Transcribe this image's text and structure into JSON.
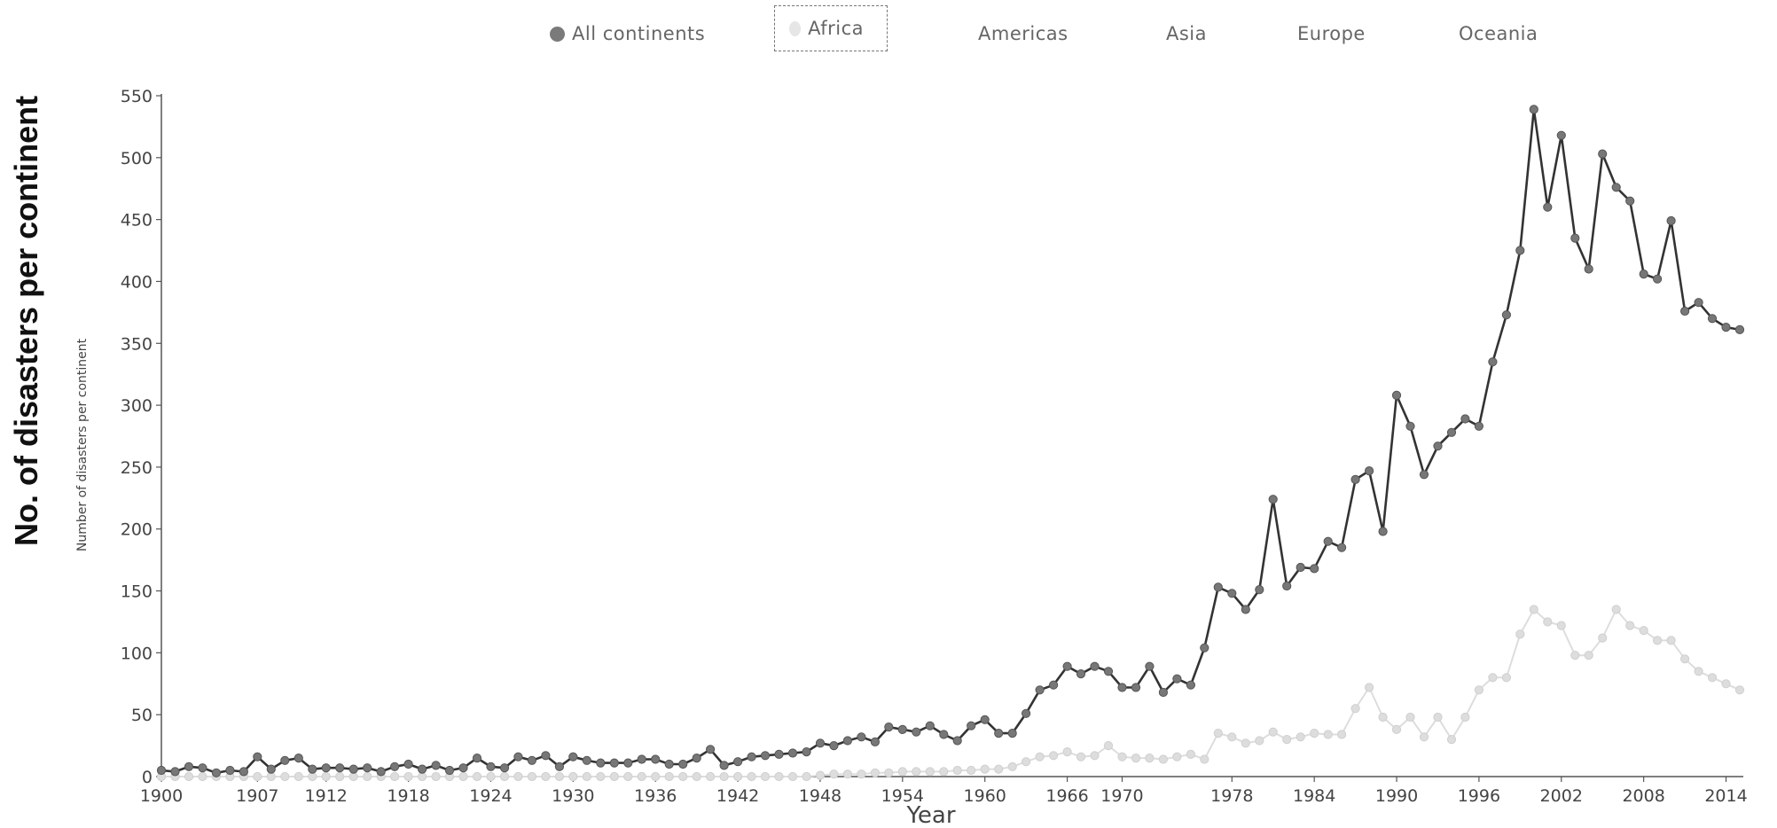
{
  "legend": {
    "items": [
      {
        "label": "All continents",
        "color": "#777777",
        "selected": false
      },
      {
        "label": "Africa",
        "color": "#dddddd",
        "selected": true
      },
      {
        "label": "Americas",
        "color": null,
        "selected": false
      },
      {
        "label": "Asia",
        "color": null,
        "selected": false
      },
      {
        "label": "Europe",
        "color": null,
        "selected": false
      },
      {
        "label": "Oceania",
        "color": null,
        "selected": false
      }
    ]
  },
  "outer_ylabel": "No. of disasters per continent",
  "chart_data": {
    "type": "line",
    "title": "",
    "xlabel": "Year",
    "ylabel": "Number of disasters per continent",
    "xlim": [
      1900,
      2015
    ],
    "ylim": [
      0,
      550
    ],
    "yticks": [
      0,
      50,
      100,
      150,
      200,
      250,
      300,
      350,
      400,
      450,
      500,
      550
    ],
    "xticks": [
      1900,
      1907,
      1912,
      1918,
      1924,
      1930,
      1936,
      1942,
      1948,
      1954,
      1960,
      1966,
      1970,
      1978,
      1984,
      1990,
      1996,
      2002,
      2008,
      2014
    ],
    "grid": false,
    "legend_position": "top",
    "x": [
      1900,
      1901,
      1902,
      1903,
      1904,
      1905,
      1906,
      1907,
      1908,
      1909,
      1910,
      1911,
      1912,
      1913,
      1914,
      1915,
      1916,
      1917,
      1918,
      1919,
      1920,
      1921,
      1922,
      1923,
      1924,
      1925,
      1926,
      1927,
      1928,
      1929,
      1930,
      1931,
      1932,
      1933,
      1934,
      1935,
      1936,
      1937,
      1938,
      1939,
      1940,
      1941,
      1942,
      1943,
      1944,
      1945,
      1946,
      1947,
      1948,
      1949,
      1950,
      1951,
      1952,
      1953,
      1954,
      1955,
      1956,
      1957,
      1958,
      1959,
      1960,
      1961,
      1962,
      1963,
      1964,
      1965,
      1966,
      1967,
      1968,
      1969,
      1970,
      1971,
      1972,
      1973,
      1974,
      1975,
      1976,
      1977,
      1978,
      1979,
      1980,
      1981,
      1982,
      1983,
      1984,
      1985,
      1986,
      1987,
      1988,
      1989,
      1990,
      1991,
      1992,
      1993,
      1994,
      1995,
      1996,
      1997,
      1998,
      1999,
      2000,
      2001,
      2002,
      2003,
      2004,
      2005,
      2006,
      2007,
      2008,
      2009,
      2010,
      2011,
      2012,
      2013,
      2014,
      2015
    ],
    "series": [
      {
        "name": "All continents",
        "color": "#333333",
        "marker_color": "#777777",
        "values": [
          5,
          4,
          8,
          7,
          3,
          5,
          4,
          16,
          6,
          13,
          15,
          6,
          7,
          7,
          6,
          7,
          4,
          8,
          10,
          6,
          9,
          5,
          7,
          15,
          8,
          7,
          16,
          13,
          17,
          8,
          16,
          13,
          11,
          11,
          11,
          14,
          14,
          10,
          10,
          15,
          22,
          9,
          12,
          16,
          17,
          18,
          19,
          20,
          27,
          25,
          29,
          32,
          28,
          40,
          38,
          36,
          41,
          34,
          29,
          41,
          46,
          35,
          35,
          51,
          70,
          74,
          89,
          83,
          89,
          85,
          72,
          72,
          89,
          68,
          79,
          74,
          104,
          153,
          148,
          135,
          151,
          224,
          154,
          169,
          168,
          190,
          185,
          240,
          247,
          198,
          308,
          283,
          244,
          267,
          278,
          289,
          283,
          335,
          373,
          425,
          539,
          460,
          518,
          435,
          410,
          503,
          476,
          465,
          406,
          402,
          449,
          376,
          383,
          370,
          363,
          361
        ]
      },
      {
        "name": "Africa",
        "color": "#dddddd",
        "marker_color": "#dddddd",
        "values": [
          0,
          0,
          0,
          0,
          0,
          0,
          0,
          0,
          0,
          0,
          0,
          0,
          0,
          0,
          0,
          0,
          0,
          0,
          0,
          0,
          0,
          0,
          0,
          0,
          0,
          0,
          0,
          0,
          0,
          0,
          0,
          0,
          0,
          0,
          0,
          0,
          0,
          0,
          0,
          0,
          0,
          0,
          0,
          0,
          0,
          0,
          0,
          0,
          1,
          2,
          2,
          2,
          3,
          3,
          4,
          4,
          4,
          4,
          5,
          5,
          6,
          6,
          8,
          12,
          16,
          17,
          20,
          16,
          17,
          25,
          16,
          15,
          15,
          14,
          16,
          18,
          14,
          35,
          32,
          27,
          29,
          36,
          30,
          32,
          35,
          34,
          34,
          55,
          72,
          48,
          38,
          48,
          32,
          48,
          30,
          48,
          70,
          80,
          80,
          115,
          135,
          125,
          122,
          98,
          98,
          112,
          135,
          122,
          118,
          110,
          110,
          95,
          85,
          80,
          75,
          70
        ]
      }
    ]
  }
}
